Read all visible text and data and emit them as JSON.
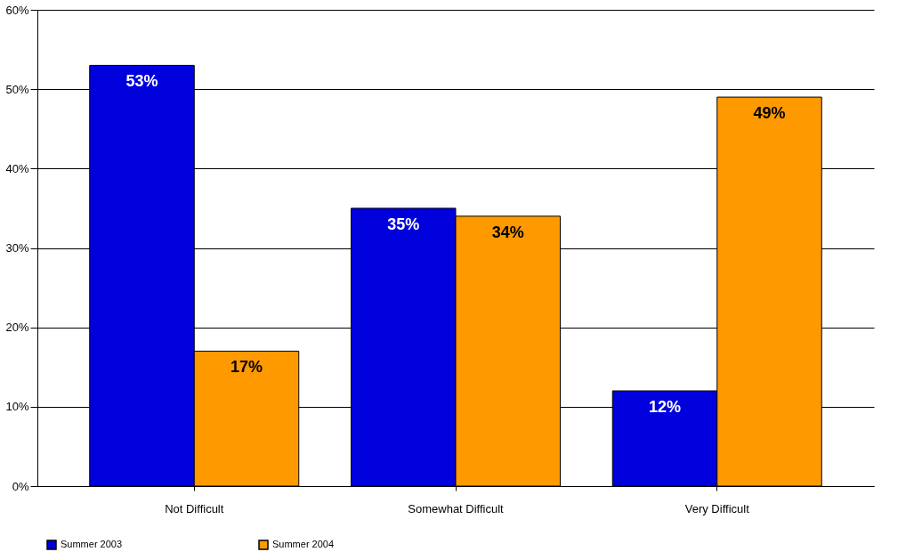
{
  "chart_data": {
    "type": "bar",
    "categories": [
      "Not Difficult",
      "Somewhat Difficult",
      "Very Difficult"
    ],
    "series": [
      {
        "name": "Summer 2003",
        "color": "#0000dd",
        "values": [
          53,
          35,
          12
        ],
        "value_labels": [
          "53%",
          "35%",
          "12%"
        ]
      },
      {
        "name": "Summer 2004",
        "color": "#ff9900",
        "values": [
          17,
          34,
          49
        ],
        "value_labels": [
          "17%",
          "34%",
          "49%"
        ]
      }
    ],
    "ylim": [
      0,
      60
    ],
    "yticks": [
      {
        "value": 0,
        "label": "0%"
      },
      {
        "value": 10,
        "label": "10%"
      },
      {
        "value": 20,
        "label": "20%"
      },
      {
        "value": 30,
        "label": "30%"
      },
      {
        "value": 40,
        "label": "40%"
      },
      {
        "value": 50,
        "label": "50%"
      },
      {
        "value": 60,
        "label": "60%"
      }
    ],
    "grid": "y",
    "legend": "bottom"
  }
}
